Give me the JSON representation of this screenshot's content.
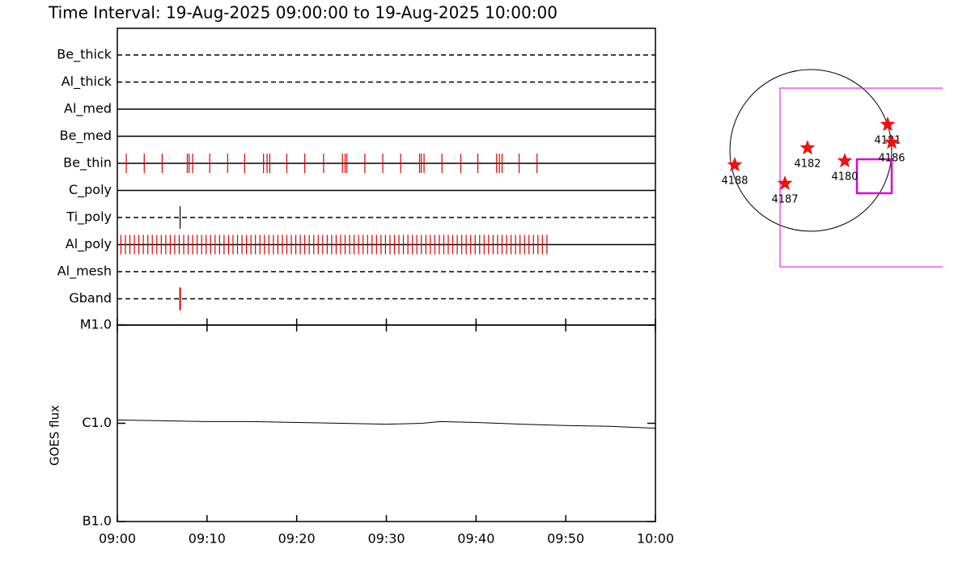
{
  "title": "Time Interval: 19-Aug-2025 09:00:00 to 19-Aug-2025 10:00:00",
  "chart_data": [
    {
      "type": "event",
      "xlim": [
        0,
        60
      ],
      "xticks": [
        {
          "value": 0,
          "label": "09:00"
        },
        {
          "value": 10,
          "label": "09:10"
        },
        {
          "value": 20,
          "label": "09:20"
        },
        {
          "value": 30,
          "label": "09:30"
        },
        {
          "value": 40,
          "label": "09:40"
        },
        {
          "value": 50,
          "label": "09:50"
        },
        {
          "value": 60,
          "label": "10:00"
        }
      ],
      "series": [
        {
          "name": "Be_thick",
          "color": "#000000",
          "linestyle": "dashed",
          "values": []
        },
        {
          "name": "Al_thick",
          "color": "#000000",
          "linestyle": "dashed",
          "values": []
        },
        {
          "name": "Al_med",
          "color": "#000000",
          "linestyle": "solid",
          "values": []
        },
        {
          "name": "Be_med",
          "color": "#000000",
          "linestyle": "solid",
          "values": []
        },
        {
          "name": "Be_thin",
          "color": "#dd0000",
          "linestyle": "solid",
          "values": [
            1.0,
            3.0,
            5.0,
            7.8,
            8.0,
            8.4,
            10.3,
            12.3,
            14.2,
            16.3,
            16.7,
            17.0,
            18.9,
            20.9,
            23.0,
            25.1,
            25.4,
            25.6,
            27.6,
            29.6,
            31.6,
            33.7,
            33.9,
            34.2,
            36.2,
            38.3,
            40.2,
            42.3,
            42.6,
            42.9,
            44.8,
            46.8
          ]
        },
        {
          "name": "C_poly",
          "color": "#000000",
          "linestyle": "solid",
          "values": []
        },
        {
          "name": "Ti_poly",
          "color": "#000000",
          "linestyle": "dashed",
          "values": [
            7.0
          ]
        },
        {
          "name": "Al_poly",
          "color": "#dd0000",
          "linestyle": "solid",
          "values": [
            0.4,
            0.9,
            1.4,
            1.9,
            2.4,
            2.9,
            3.4,
            3.9,
            4.4,
            4.9,
            5.4,
            5.9,
            6.4,
            6.9,
            7.4,
            7.9,
            8.4,
            8.9,
            9.4,
            9.9,
            10.4,
            10.9,
            11.4,
            11.9,
            12.4,
            12.9,
            13.4,
            13.9,
            14.4,
            14.9,
            15.4,
            15.9,
            16.4,
            16.9,
            17.4,
            17.9,
            18.4,
            18.9,
            19.4,
            19.9,
            20.4,
            20.9,
            21.4,
            21.9,
            22.4,
            22.9,
            23.4,
            23.9,
            24.4,
            24.9,
            25.4,
            25.9,
            26.4,
            26.9,
            27.4,
            27.9,
            28.4,
            28.9,
            29.4,
            29.9,
            30.4,
            30.9,
            31.4,
            31.9,
            32.4,
            32.9,
            33.4,
            33.9,
            34.4,
            34.9,
            35.4,
            35.9,
            36.4,
            36.9,
            37.4,
            37.9,
            38.4,
            38.9,
            39.4,
            39.9,
            40.4,
            40.9,
            41.4,
            41.9,
            42.4,
            42.9,
            43.4,
            43.9,
            44.4,
            44.9,
            45.4,
            45.9,
            46.4,
            46.9,
            47.4,
            47.9
          ]
        },
        {
          "name": "Al_mesh",
          "color": "#000000",
          "linestyle": "dashed",
          "values": []
        },
        {
          "name": "Gband",
          "color": "#dd0000",
          "linestyle": "dashed",
          "values": [
            7.0
          ]
        }
      ]
    },
    {
      "type": "line",
      "ylabel": "GOES flux",
      "log_y": true,
      "color": "#000000",
      "xlim": [
        0,
        60
      ],
      "ylim": [
        1e-07,
        1e-05
      ],
      "yticks": [
        {
          "value": 1e-05,
          "label": "M1.0"
        },
        {
          "value": 1e-06,
          "label": "C1.0"
        },
        {
          "value": 1e-07,
          "label": "B1.0"
        }
      ],
      "x": [
        0,
        5,
        10,
        15,
        20,
        25,
        30,
        34,
        36,
        40,
        45,
        50,
        55,
        60
      ],
      "values": [
        1.08e-06,
        1.06e-06,
        1.04e-06,
        1.04e-06,
        1.02e-06,
        1e-06,
        9.8e-07,
        1e-06,
        1.04e-06,
        1.02e-06,
        9.8e-07,
        9.5e-07,
        9.3e-07,
        8.9e-07
      ]
    },
    {
      "type": "map",
      "color": "#ee1111",
      "box_color": "#dd00dd",
      "regions": [
        "4188",
        "4187",
        "4182",
        "4180",
        "4181",
        "4186"
      ]
    }
  ]
}
